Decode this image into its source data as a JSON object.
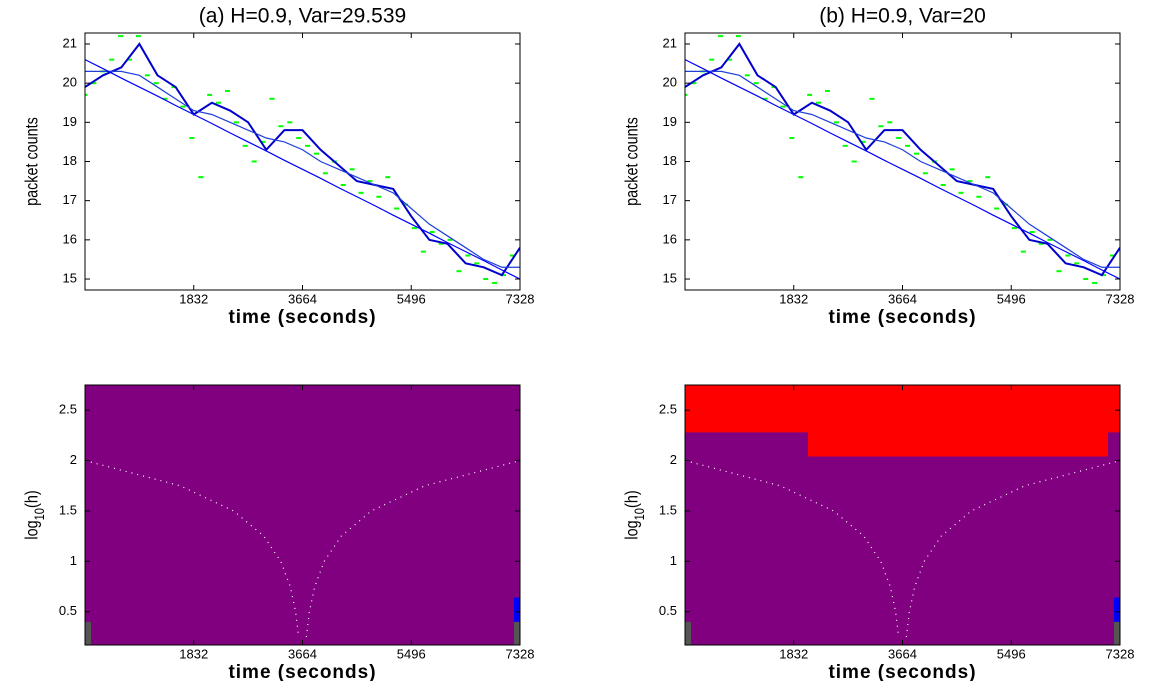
{
  "chart_data": [
    {
      "type": "line",
      "title": "(a) H=0.9, Var=29.539",
      "xlabel": "time (seconds)",
      "ylabel": [
        "packet counts"
      ],
      "xlim": [
        0,
        7328
      ],
      "xticks": [
        1832,
        3664,
        5496,
        7328
      ],
      "ylim": [
        14.72,
        21.28
      ],
      "yticks": [
        15,
        16,
        17,
        18,
        19,
        20,
        21
      ],
      "x": [
        0,
        305,
        611,
        916,
        1221,
        1527,
        1832,
        2137,
        2443,
        2748,
        3053,
        3359,
        3664,
        3969,
        4275,
        4580,
        4885,
        5191,
        5496,
        5801,
        6107,
        6412,
        6717,
        7023,
        7328
      ],
      "series": [
        {
          "color": "#0000cc",
          "values": [
            19.9,
            20.2,
            20.4,
            21.0,
            20.2,
            19.9,
            19.2,
            19.5,
            19.3,
            19.0,
            18.3,
            18.8,
            18.8,
            18.3,
            17.9,
            17.5,
            17.4,
            17.3,
            16.6,
            16.0,
            15.9,
            15.4,
            15.3,
            15.1,
            15.8
          ]
        },
        {
          "color": "#1f3fd8",
          "values": [
            20.3,
            20.3,
            20.3,
            20.2,
            19.9,
            19.6,
            19.3,
            19.2,
            19.0,
            18.8,
            18.6,
            18.5,
            18.3,
            18.0,
            17.8,
            17.6,
            17.4,
            17.2,
            16.8,
            16.4,
            16.1,
            15.8,
            15.5,
            15.3,
            15.3
          ]
        },
        {
          "color": "#0000ff",
          "values": [
            20.6,
            20.37,
            20.13,
            19.9,
            19.67,
            19.43,
            19.2,
            18.97,
            18.73,
            18.5,
            18.27,
            18.03,
            17.8,
            17.57,
            17.33,
            17.1,
            16.87,
            16.63,
            16.4,
            16.17,
            15.93,
            15.7,
            15.47,
            15.23,
            15.0
          ]
        }
      ],
      "points": {
        "color": "#00ff00",
        "x": [
          0,
          150,
          300,
          450,
          600,
          750,
          900,
          1050,
          1200,
          1350,
          1500,
          1650,
          1800,
          1950,
          2100,
          2250,
          2400,
          2550,
          2700,
          2850,
          3000,
          3150,
          3300,
          3450,
          3600,
          3750,
          3900,
          4050,
          4200,
          4350,
          4500,
          4650,
          4800,
          4950,
          5100,
          5250,
          5400,
          5550,
          5700,
          5850,
          6000,
          6150,
          6300,
          6450,
          6600,
          6750,
          6900,
          7050,
          7200
        ],
        "values": [
          19.7,
          20.0,
          20.3,
          20.6,
          21.2,
          20.6,
          21.2,
          20.2,
          20.0,
          19.6,
          19.9,
          19.4,
          18.6,
          17.6,
          19.7,
          19.5,
          19.8,
          19.0,
          18.4,
          18.0,
          18.5,
          19.6,
          18.9,
          19.0,
          18.6,
          18.4,
          18.2,
          17.7,
          18.0,
          17.4,
          17.8,
          17.2,
          17.5,
          17.1,
          17.6,
          16.8,
          16.9,
          16.3,
          15.7,
          16.2,
          15.9,
          16.0,
          15.2,
          15.6,
          15.4,
          15.0,
          14.9,
          15.1,
          15.6
        ]
      }
    },
    {
      "type": "line",
      "title": "(b) H=0.9, Var=20",
      "xlabel": "time (seconds)",
      "ylabel": [
        "packet counts"
      ],
      "xlim": [
        0,
        7328
      ],
      "xticks": [
        1832,
        3664,
        5496,
        7328
      ],
      "ylim": [
        14.72,
        21.28
      ],
      "yticks": [
        15,
        16,
        17,
        18,
        19,
        20,
        21
      ],
      "x": [
        0,
        305,
        611,
        916,
        1221,
        1527,
        1832,
        2137,
        2443,
        2748,
        3053,
        3359,
        3664,
        3969,
        4275,
        4580,
        4885,
        5191,
        5496,
        5801,
        6107,
        6412,
        6717,
        7023,
        7328
      ],
      "series": [
        {
          "color": "#0000cc",
          "values": [
            19.9,
            20.2,
            20.4,
            21.0,
            20.2,
            19.9,
            19.2,
            19.5,
            19.3,
            19.0,
            18.3,
            18.8,
            18.8,
            18.3,
            17.9,
            17.5,
            17.4,
            17.3,
            16.6,
            16.0,
            15.9,
            15.4,
            15.3,
            15.1,
            15.8
          ]
        },
        {
          "color": "#1f3fd8",
          "values": [
            20.3,
            20.3,
            20.3,
            20.2,
            19.9,
            19.6,
            19.3,
            19.2,
            19.0,
            18.8,
            18.6,
            18.5,
            18.3,
            18.0,
            17.8,
            17.6,
            17.4,
            17.2,
            16.8,
            16.4,
            16.1,
            15.8,
            15.5,
            15.3,
            15.3
          ]
        },
        {
          "color": "#0000ff",
          "values": [
            20.6,
            20.37,
            20.13,
            19.9,
            19.67,
            19.43,
            19.2,
            18.97,
            18.73,
            18.5,
            18.27,
            18.03,
            17.8,
            17.57,
            17.33,
            17.1,
            16.87,
            16.63,
            16.4,
            16.17,
            15.93,
            15.7,
            15.47,
            15.23,
            15.0
          ]
        }
      ],
      "points": {
        "color": "#00ff00",
        "x": [
          0,
          150,
          300,
          450,
          600,
          750,
          900,
          1050,
          1200,
          1350,
          1500,
          1650,
          1800,
          1950,
          2100,
          2250,
          2400,
          2550,
          2700,
          2850,
          3000,
          3150,
          3300,
          3450,
          3600,
          3750,
          3900,
          4050,
          4200,
          4350,
          4500,
          4650,
          4800,
          4950,
          5100,
          5250,
          5400,
          5550,
          5700,
          5850,
          6000,
          6150,
          6300,
          6450,
          6600,
          6750,
          6900,
          7050,
          7200
        ],
        "values": [
          19.7,
          20.0,
          20.3,
          20.6,
          21.2,
          20.6,
          21.2,
          20.2,
          20.0,
          19.6,
          19.9,
          19.4,
          18.6,
          17.6,
          19.7,
          19.5,
          19.8,
          19.0,
          18.4,
          18.0,
          18.5,
          19.6,
          18.9,
          19.0,
          18.6,
          18.4,
          18.2,
          17.7,
          18.0,
          17.4,
          17.8,
          17.2,
          17.5,
          17.1,
          17.6,
          16.8,
          16.9,
          16.3,
          15.7,
          16.2,
          15.9,
          16.0,
          15.2,
          15.6,
          15.4,
          15.0,
          14.9,
          15.1,
          15.6
        ]
      }
    },
    {
      "type": "sizer",
      "xlabel": "time (seconds)",
      "ylabel": [
        "log",
        "10",
        "(h)"
      ],
      "background": "#800080",
      "xlim": [
        0,
        7328
      ],
      "xticks": [
        1832,
        3664,
        5496,
        7328
      ],
      "ylim": [
        0.17,
        2.75
      ],
      "yticks": [
        0.5,
        1,
        1.5,
        2,
        2.5
      ],
      "areas": [],
      "curves": [
        {
          "color": "#ffffff",
          "x": [
            0,
            1604,
            2505,
            3012,
            3298,
            3458,
            3548,
            3599
          ],
          "values": [
            2,
            1.75,
            1.5,
            1.25,
            1,
            0.75,
            0.5,
            0.25
          ]
        },
        {
          "color": "#ffffff",
          "x": [
            3729,
            3780,
            3870,
            4030,
            4316,
            4823,
            5724,
            7328
          ],
          "values": [
            0.25,
            0.5,
            0.75,
            1,
            1.25,
            1.5,
            1.75,
            2
          ]
        }
      ],
      "bars": [
        {
          "color": "#555555",
          "x": [
            0,
            101
          ],
          "y": [
            0.17,
            0.4
          ]
        },
        {
          "color": "#555555",
          "x": [
            7227,
            7328
          ],
          "y": [
            0.17,
            0.4
          ]
        },
        {
          "color": "#0000ff",
          "x": [
            7227,
            7328
          ],
          "y": [
            0.4,
            0.64
          ]
        }
      ]
    },
    {
      "type": "sizer",
      "xlabel": "time (seconds)",
      "ylabel": [
        "log",
        "10",
        "(h)"
      ],
      "background": "#800080",
      "xlim": [
        0,
        7328
      ],
      "xticks": [
        1832,
        3664,
        5496,
        7328
      ],
      "ylim": [
        0.17,
        2.75
      ],
      "yticks": [
        0.5,
        1,
        1.5,
        2,
        2.5
      ],
      "areas": [
        {
          "color": "#ff0000",
          "x": [
            0,
            2072,
            2072,
            7126,
            7126,
            7328
          ],
          "values": [
            2.28,
            2.28,
            2.04,
            2.04,
            2.28,
            2.28
          ]
        }
      ],
      "curves": [
        {
          "color": "#ffffff",
          "x": [
            0,
            1604,
            2505,
            3012,
            3298,
            3458,
            3548,
            3599
          ],
          "values": [
            2,
            1.75,
            1.5,
            1.25,
            1,
            0.75,
            0.5,
            0.25
          ]
        },
        {
          "color": "#ffffff",
          "x": [
            3729,
            3780,
            3870,
            4030,
            4316,
            4823,
            5724,
            7328
          ],
          "values": [
            0.25,
            0.5,
            0.75,
            1,
            1.25,
            1.5,
            1.75,
            2
          ]
        }
      ],
      "bars": [
        {
          "color": "#555555",
          "x": [
            0,
            101
          ],
          "y": [
            0.17,
            0.4
          ]
        },
        {
          "color": "#555555",
          "x": [
            7227,
            7328
          ],
          "y": [
            0.17,
            0.4
          ]
        },
        {
          "color": "#0000ff",
          "x": [
            7227,
            7328
          ],
          "y": [
            0.4,
            0.64
          ]
        }
      ]
    }
  ]
}
